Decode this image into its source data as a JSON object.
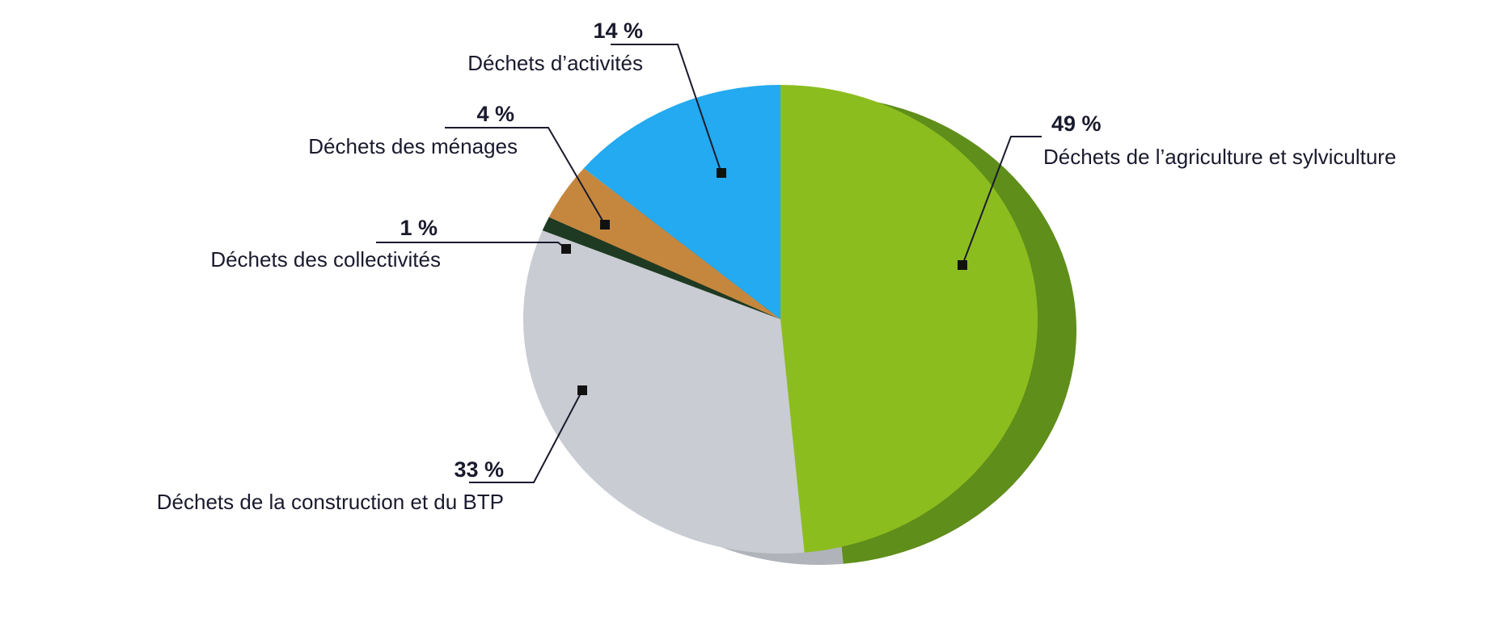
{
  "chart_data": {
    "type": "pie",
    "slices": [
      {
        "label": "Déchets de l’agriculture et sylviculture",
        "value": 49,
        "value_label": "49 %",
        "color": "#8cbd1f",
        "side_color": "#5f8e1a"
      },
      {
        "label": "Déchets de la construction et du BTP",
        "value": 33,
        "value_label": "33 %",
        "color": "#c9ccd3",
        "side_color": "#b0b3ba"
      },
      {
        "label": "Déchets des collectivités",
        "value": 1,
        "value_label": "1 %",
        "color": "#1f3a22",
        "side_color": "#142715"
      },
      {
        "label": "Déchets des ménages",
        "value": 4,
        "value_label": "4 %",
        "color": "#c5873e",
        "side_color": "#9c6a2e"
      },
      {
        "label": "Déchets d’activités",
        "value": 14,
        "value_label": "14 %",
        "color": "#23aaf0",
        "side_color": "#1585c0"
      }
    ],
    "start": "top, clockwise"
  }
}
